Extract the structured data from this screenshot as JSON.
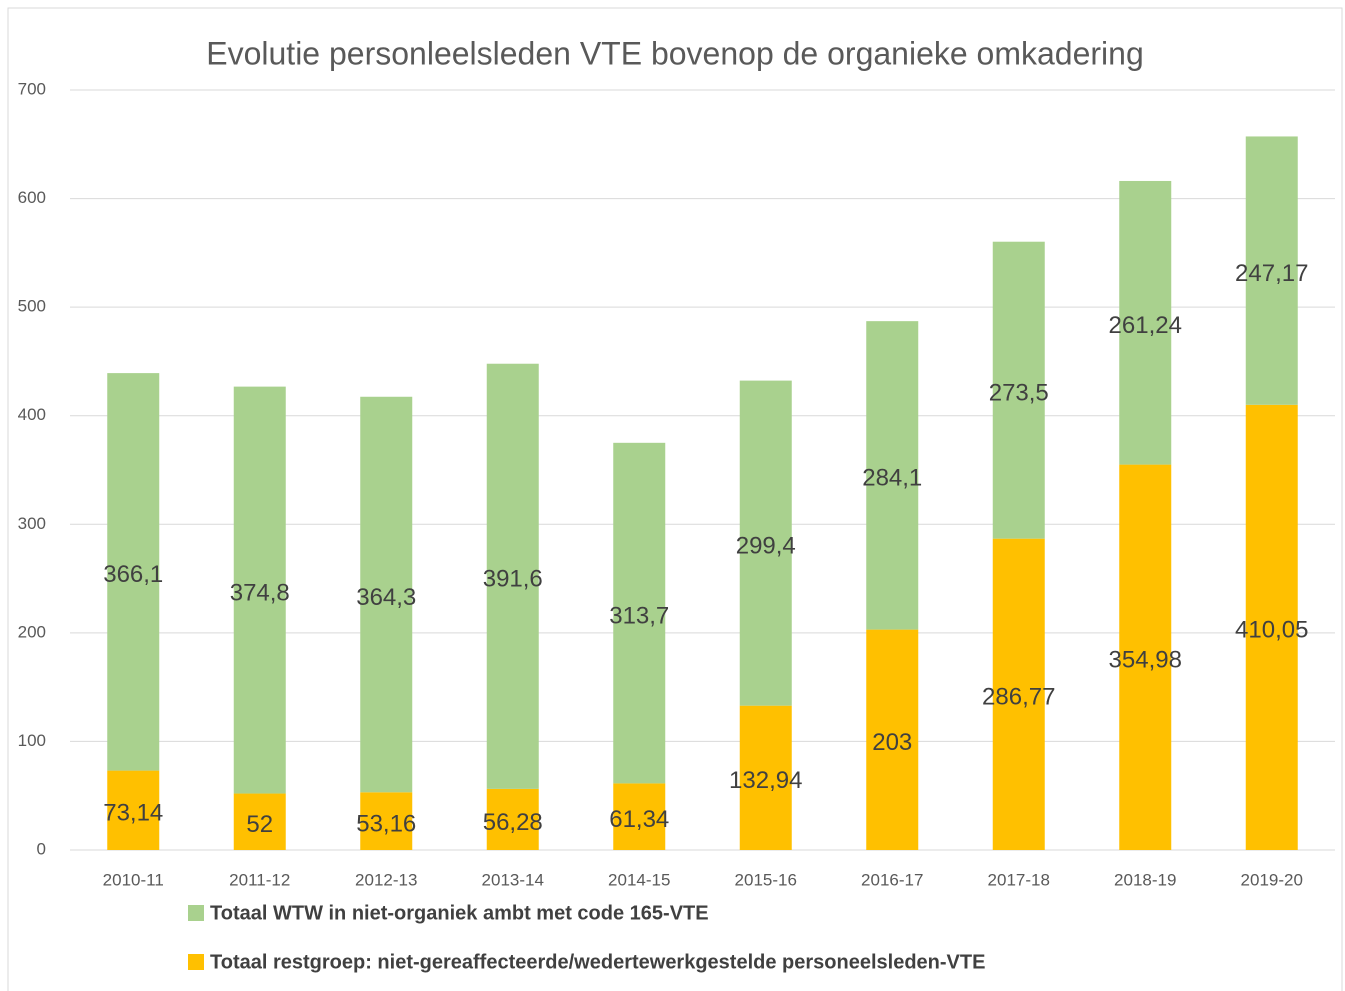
{
  "chart_data": {
    "type": "stacked_bar",
    "title": "Evolutie personleelsleden VTE bovenop de organieke omkadering",
    "categories": [
      "2010-11",
      "2011-12",
      "2012-13",
      "2013-14",
      "2014-15",
      "2015-16",
      "2016-17",
      "2017-18",
      "2018-19",
      "2019-20"
    ],
    "series": [
      {
        "name": "Totaal WTW in niet-organiek ambt met code 165-VTE",
        "color": "#a9d18e",
        "values": [
          366.1,
          374.8,
          364.3,
          391.6,
          313.7,
          299.4,
          284.1,
          273.5,
          261.24,
          247.17
        ],
        "value_labels": [
          "366,1",
          "374,8",
          "364,3",
          "391,6",
          "313,7",
          "299,4",
          "284,1",
          "273,5",
          "261,24",
          "247,17"
        ]
      },
      {
        "name": "Totaal restgroep: niet-gereaffecteerde/wedertewerkgestelde personeelsleden-VTE",
        "color": "#ffc000",
        "values": [
          73.14,
          52,
          53.16,
          56.28,
          61.34,
          132.94,
          203,
          286.77,
          354.98,
          410.05
        ],
        "value_labels": [
          "73,14",
          "52",
          "53,16",
          "56,28",
          "61,34",
          "132,94",
          "203",
          "286,77",
          "354,98",
          "410,05"
        ]
      }
    ],
    "ylim": [
      0,
      700
    ],
    "yticks": [
      0,
      100,
      200,
      300,
      400,
      500,
      600,
      700
    ],
    "grid": true
  }
}
